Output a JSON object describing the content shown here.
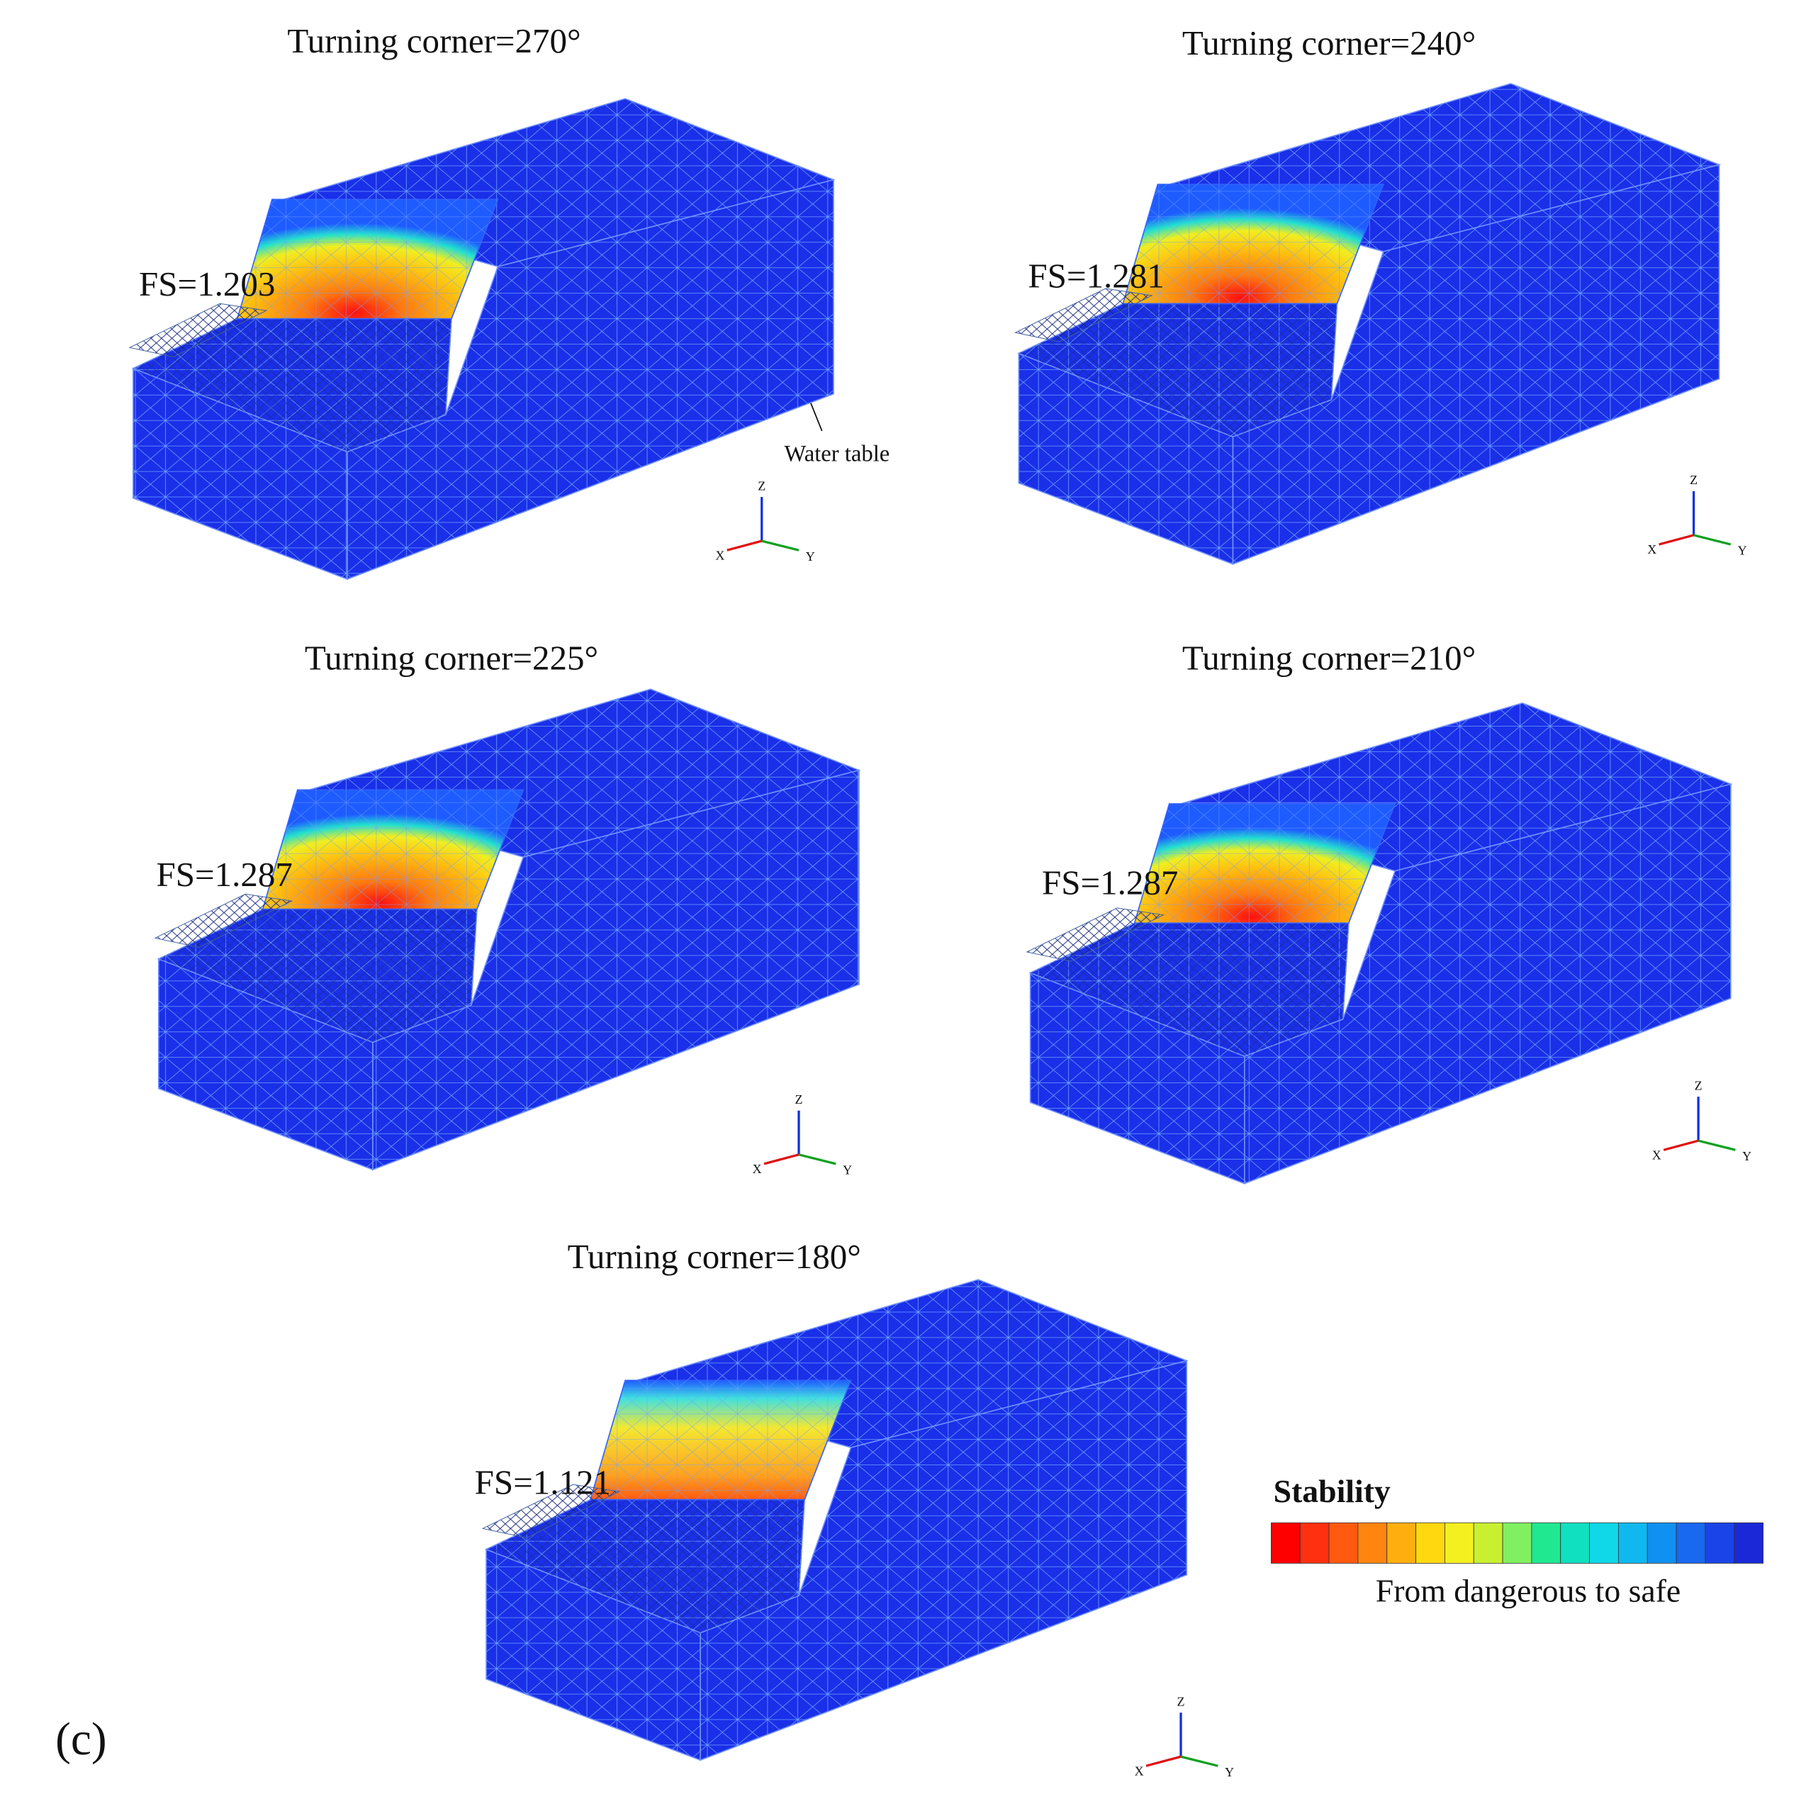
{
  "figure": {
    "panels": [
      {
        "title": "Turning corner=270°",
        "fs": "FS=1.203"
      },
      {
        "title": "Turning corner=240°",
        "fs": "FS=1.281"
      },
      {
        "title": "Turning corner=225°",
        "fs": "FS=1.287"
      },
      {
        "title": "Turning corner=210°",
        "fs": "FS=1.287"
      },
      {
        "title": "Turning corner=180°",
        "fs": "FS=1.121"
      }
    ],
    "annotation": "Water table",
    "axis_labels": {
      "x": "X",
      "y": "Y",
      "z": "Z"
    },
    "legend": {
      "title": "Stability",
      "caption": "From dangerous to safe"
    },
    "panel_label": "(c)"
  }
}
